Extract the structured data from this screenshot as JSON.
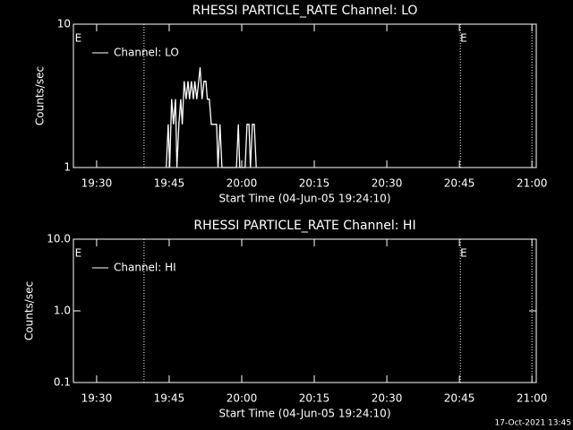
{
  "chart_data": [
    {
      "type": "line",
      "title": "RHESSI PARTICLE_RATE Channel: LO",
      "y_label": "Counts/sec",
      "x_label": "Start Time (04-Jun-05 19:24:10)",
      "log_y": true,
      "xlim": [
        25.2,
        120.9
      ],
      "ylim": [
        1,
        10
      ],
      "yticks": [
        1,
        10
      ],
      "xticks": [
        {
          "value": 30,
          "label": "19:30"
        },
        {
          "value": 45,
          "label": "19:45"
        },
        {
          "value": 60,
          "label": "20:00"
        },
        {
          "value": 75,
          "label": "20:15"
        },
        {
          "value": 90,
          "label": "20:30"
        },
        {
          "value": 105,
          "label": "20:45"
        },
        {
          "value": 120,
          "label": "21:00"
        }
      ],
      "vlines": [
        39.8,
        105.2,
        120
      ],
      "annotations": [
        {
          "text": "E",
          "x": 25.5
        },
        {
          "text": "E",
          "x": 105.2
        }
      ],
      "x": [
        44.4,
        44.8,
        45.1,
        45.5,
        45.9,
        46.3,
        46.6,
        47.0,
        47.4,
        47.7,
        48.1,
        48.5,
        48.9,
        49.2,
        49.6,
        50.0,
        50.3,
        50.7,
        51.1,
        51.4,
        51.8,
        52.2,
        52.6,
        52.9,
        53.3,
        53.7,
        54.0,
        54.4,
        54.8,
        55.1,
        55.5,
        55.9,
        58.9,
        59.3,
        59.6,
        60.7,
        61.1,
        61.5,
        61.8,
        62.2,
        62.6,
        63.0
      ],
      "series": [
        {
          "name": "Channel: LO",
          "color": "#ffffff",
          "values": [
            1,
            2,
            1,
            3,
            2,
            3,
            1,
            2,
            3,
            2,
            4,
            3,
            4,
            3,
            4,
            3,
            4,
            3,
            4,
            5,
            3,
            4,
            4,
            3,
            3,
            2,
            2,
            2,
            2,
            1,
            2,
            1,
            1,
            2,
            1,
            1,
            2,
            2,
            1,
            2,
            2,
            1
          ]
        }
      ]
    },
    {
      "type": "line",
      "title": "RHESSI PARTICLE_RATE Channel: HI",
      "y_label": "Counts/sec",
      "x_label": "Start Time (04-Jun-05 19:24:10)",
      "log_y": true,
      "xlim": [
        25.2,
        120.9
      ],
      "ylim": [
        0.1,
        10
      ],
      "yticks": [
        0.1,
        {
          "value": 1,
          "label": "1.0"
        },
        {
          "value": 10,
          "label": "10.0"
        }
      ],
      "xticks": [
        {
          "value": 30,
          "label": "19:30"
        },
        {
          "value": 45,
          "label": "19:45"
        },
        {
          "value": 60,
          "label": "20:00"
        },
        {
          "value": 75,
          "label": "20:15"
        },
        {
          "value": 90,
          "label": "20:30"
        },
        {
          "value": 105,
          "label": "20:45"
        },
        {
          "value": 120,
          "label": "21:00"
        }
      ],
      "vlines": [
        39.8,
        105.2,
        120
      ],
      "annotations": [
        {
          "text": "E",
          "x": 25.5
        },
        {
          "text": "E",
          "x": 105.2
        }
      ],
      "x": [],
      "series": [
        {
          "name": "Channel: HI",
          "color": "#ffffff",
          "values": []
        }
      ]
    }
  ],
  "timestamp": "17-Oct-2021 13:45"
}
